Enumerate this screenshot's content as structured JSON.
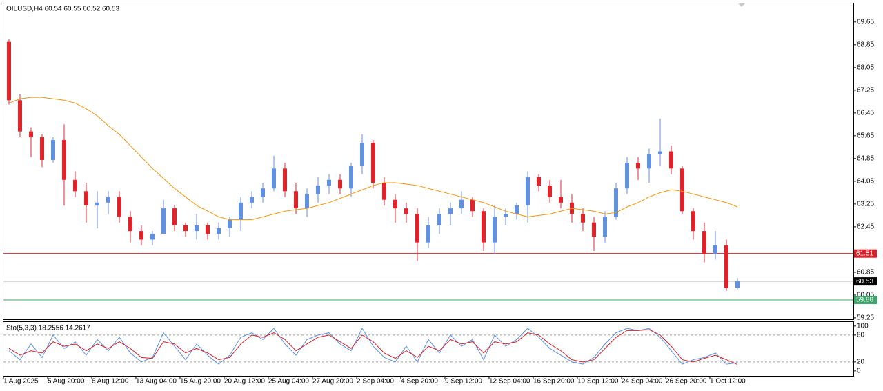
{
  "chart_data": [
    {
      "type": "candlestick",
      "title": "OILUSD,H4  60.54 60.55 60.52 60.53",
      "categories": [
        "1 Aug 2025",
        null,
        null,
        null,
        "5 Aug 20:00",
        null,
        null,
        null,
        "8 Aug 12:00",
        null,
        null,
        null,
        "13 Aug 04:00",
        null,
        null,
        null,
        "15 Aug 20:00",
        null,
        null,
        null,
        "20 Aug 12:00",
        null,
        null,
        null,
        "25 Aug 04:00",
        null,
        null,
        null,
        "27 Aug 20:00",
        null,
        null,
        null,
        "2 Sep 04:00",
        null,
        null,
        null,
        "4 Sep 20:00",
        null,
        null,
        null,
        "9 Sep 12:00",
        null,
        null,
        null,
        "12 Sep 04:00",
        null,
        null,
        null,
        "16 Sep 20:00",
        null,
        null,
        null,
        "19 Sep 12:00",
        null,
        null,
        null,
        "24 Sep 04:00",
        null,
        null,
        null,
        "26 Sep 20:00",
        null,
        null,
        null,
        "1 Oct 12:00",
        null,
        null
      ],
      "open": [
        68.95,
        66.9,
        65.8,
        65.6,
        64.8,
        65.5,
        64.1,
        63.7,
        63.2,
        63.3,
        63.5,
        62.8,
        62.3,
        62.0,
        62.2,
        63.1,
        62.5,
        62.3,
        62.5,
        62.2,
        62.4,
        62.7,
        63.3,
        63.5,
        63.8,
        64.5,
        63.7,
        63.1,
        63.6,
        63.9,
        64.1,
        63.8,
        64.6,
        65.4,
        64.0,
        63.4,
        63.1,
        62.9,
        61.9,
        62.5,
        62.9,
        63.1,
        63.4,
        63.0,
        61.9,
        62.8,
        62.9,
        63.2,
        64.2,
        63.9,
        63.5,
        63.3,
        62.9,
        62.6,
        62.1,
        62.8,
        63.8,
        64.7,
        64.5,
        65.0,
        65.1,
        64.5,
        63.0,
        62.3,
        61.5,
        61.8,
        60.3
      ],
      "high": [
        69.05,
        67.1,
        65.95,
        65.7,
        65.6,
        66.05,
        64.4,
        64.0,
        63.7,
        63.7,
        63.7,
        63.0,
        62.5,
        62.3,
        63.4,
        63.2,
        62.6,
        62.9,
        62.6,
        62.6,
        62.8,
        63.5,
        63.7,
        64.0,
        64.95,
        64.7,
        64.0,
        63.8,
        64.2,
        64.3,
        64.3,
        64.7,
        65.7,
        65.5,
        64.2,
        63.6,
        63.3,
        63.1,
        62.8,
        63.1,
        63.3,
        63.7,
        63.5,
        63.1,
        63.2,
        63.1,
        63.3,
        64.4,
        64.3,
        64.1,
        64.1,
        63.6,
        63.1,
        62.8,
        63.0,
        64.0,
        64.9,
        64.9,
        65.2,
        66.25,
        65.3,
        64.6,
        63.1,
        62.6,
        62.3,
        62.0,
        60.65
      ],
      "low": [
        66.75,
        65.6,
        64.9,
        64.55,
        64.7,
        63.2,
        63.5,
        62.6,
        62.4,
        62.9,
        62.6,
        61.9,
        61.8,
        61.8,
        62.2,
        62.3,
        62.1,
        62.0,
        62.0,
        62.0,
        62.1,
        62.3,
        63.1,
        63.3,
        63.7,
        63.5,
        62.9,
        62.8,
        63.3,
        63.6,
        63.6,
        63.5,
        64.3,
        63.8,
        63.2,
        62.6,
        62.6,
        61.25,
        61.7,
        62.2,
        62.5,
        62.9,
        62.8,
        61.6,
        61.5,
        62.5,
        62.7,
        62.6,
        63.7,
        63.3,
        63.1,
        62.6,
        62.3,
        61.6,
        61.9,
        62.7,
        63.6,
        64.1,
        64.0,
        64.6,
        64.3,
        62.9,
        62.0,
        61.2,
        61.3,
        60.2,
        60.25
      ],
      "close": [
        66.9,
        65.8,
        65.6,
        64.8,
        65.5,
        64.1,
        63.7,
        63.2,
        63.3,
        63.5,
        62.8,
        62.3,
        62.0,
        62.2,
        63.1,
        62.5,
        62.3,
        62.5,
        62.2,
        62.4,
        62.7,
        63.3,
        63.5,
        63.8,
        64.5,
        63.7,
        63.1,
        63.6,
        63.9,
        64.1,
        63.8,
        64.6,
        65.4,
        64.0,
        63.4,
        63.1,
        62.9,
        61.9,
        62.5,
        62.9,
        63.1,
        63.4,
        63.0,
        61.9,
        62.8,
        62.9,
        63.2,
        64.2,
        63.9,
        63.5,
        63.3,
        62.9,
        62.6,
        62.1,
        62.8,
        63.8,
        64.7,
        64.5,
        65.0,
        65.1,
        64.5,
        63.0,
        62.3,
        61.5,
        61.8,
        60.3,
        60.53
      ],
      "up_color": "#6290e0",
      "down_color": "#e0242c",
      "ma": {
        "color": "#f0960f",
        "values": [
          66.8,
          66.95,
          67.0,
          67.0,
          66.95,
          66.9,
          66.8,
          66.6,
          66.35,
          66.0,
          65.7,
          65.3,
          64.9,
          64.5,
          64.15,
          63.8,
          63.5,
          63.2,
          63.0,
          62.8,
          62.7,
          62.7,
          62.7,
          62.8,
          62.9,
          63.0,
          63.05,
          63.1,
          63.2,
          63.3,
          63.45,
          63.6,
          63.75,
          63.9,
          64.0,
          64.0,
          63.95,
          63.9,
          63.8,
          63.7,
          63.6,
          63.5,
          63.4,
          63.3,
          63.15,
          63.0,
          62.9,
          62.8,
          62.85,
          62.9,
          63.0,
          63.1,
          63.05,
          63.0,
          62.9,
          62.95,
          63.15,
          63.3,
          63.5,
          63.65,
          63.75,
          63.7,
          63.6,
          63.5,
          63.4,
          63.3,
          63.15
        ]
      },
      "levels": [
        {
          "value": 61.51,
          "line_color": "#d0242c",
          "label_color": "#d0242c"
        },
        {
          "value": 60.53,
          "line_color": "#c0c0c0",
          "label_color": "#000000"
        },
        {
          "value": 59.88,
          "line_color": "#3aa66a",
          "label_color": "#3aa66a"
        }
      ],
      "ylim": [
        59.2,
        70.3
      ],
      "yticks": [
        69.65,
        68.85,
        68.05,
        67.25,
        66.45,
        65.65,
        64.85,
        64.05,
        63.25,
        62.45,
        60.85,
        60.05,
        59.25
      ]
    },
    {
      "type": "line",
      "title": "Sto(5,3,3) 18.2556 14.2617",
      "series": [
        {
          "color": "#5b8fe0",
          "values": [
            45,
            25,
            60,
            30,
            80,
            50,
            65,
            35,
            70,
            45,
            75,
            40,
            20,
            30,
            85,
            55,
            25,
            60,
            35,
            15,
            35,
            75,
            85,
            70,
            95,
            60,
            35,
            70,
            80,
            85,
            60,
            45,
            95,
            55,
            30,
            20,
            55,
            20,
            70,
            40,
            80,
            55,
            70,
            25,
            80,
            55,
            70,
            95,
            75,
            50,
            35,
            20,
            15,
            30,
            60,
            85,
            95,
            90,
            95,
            75,
            45,
            15,
            25,
            30,
            40,
            15,
            18.2556
          ]
        },
        {
          "color": "#d0202a",
          "values": [
            50,
            35,
            45,
            40,
            65,
            55,
            60,
            45,
            60,
            50,
            65,
            50,
            30,
            28,
            65,
            60,
            40,
            50,
            40,
            25,
            30,
            60,
            80,
            75,
            85,
            70,
            45,
            60,
            75,
            80,
            65,
            50,
            80,
            65,
            40,
            28,
            45,
            30,
            55,
            45,
            70,
            60,
            65,
            40,
            65,
            60,
            65,
            85,
            80,
            60,
            45,
            25,
            20,
            25,
            50,
            75,
            90,
            90,
            92,
            80,
            55,
            25,
            20,
            28,
            35,
            25,
            14.2617
          ]
        }
      ],
      "levels": [
        20,
        80
      ],
      "ylim": [
        -11,
        109
      ],
      "yticks": [
        0,
        20,
        80,
        100
      ]
    }
  ]
}
